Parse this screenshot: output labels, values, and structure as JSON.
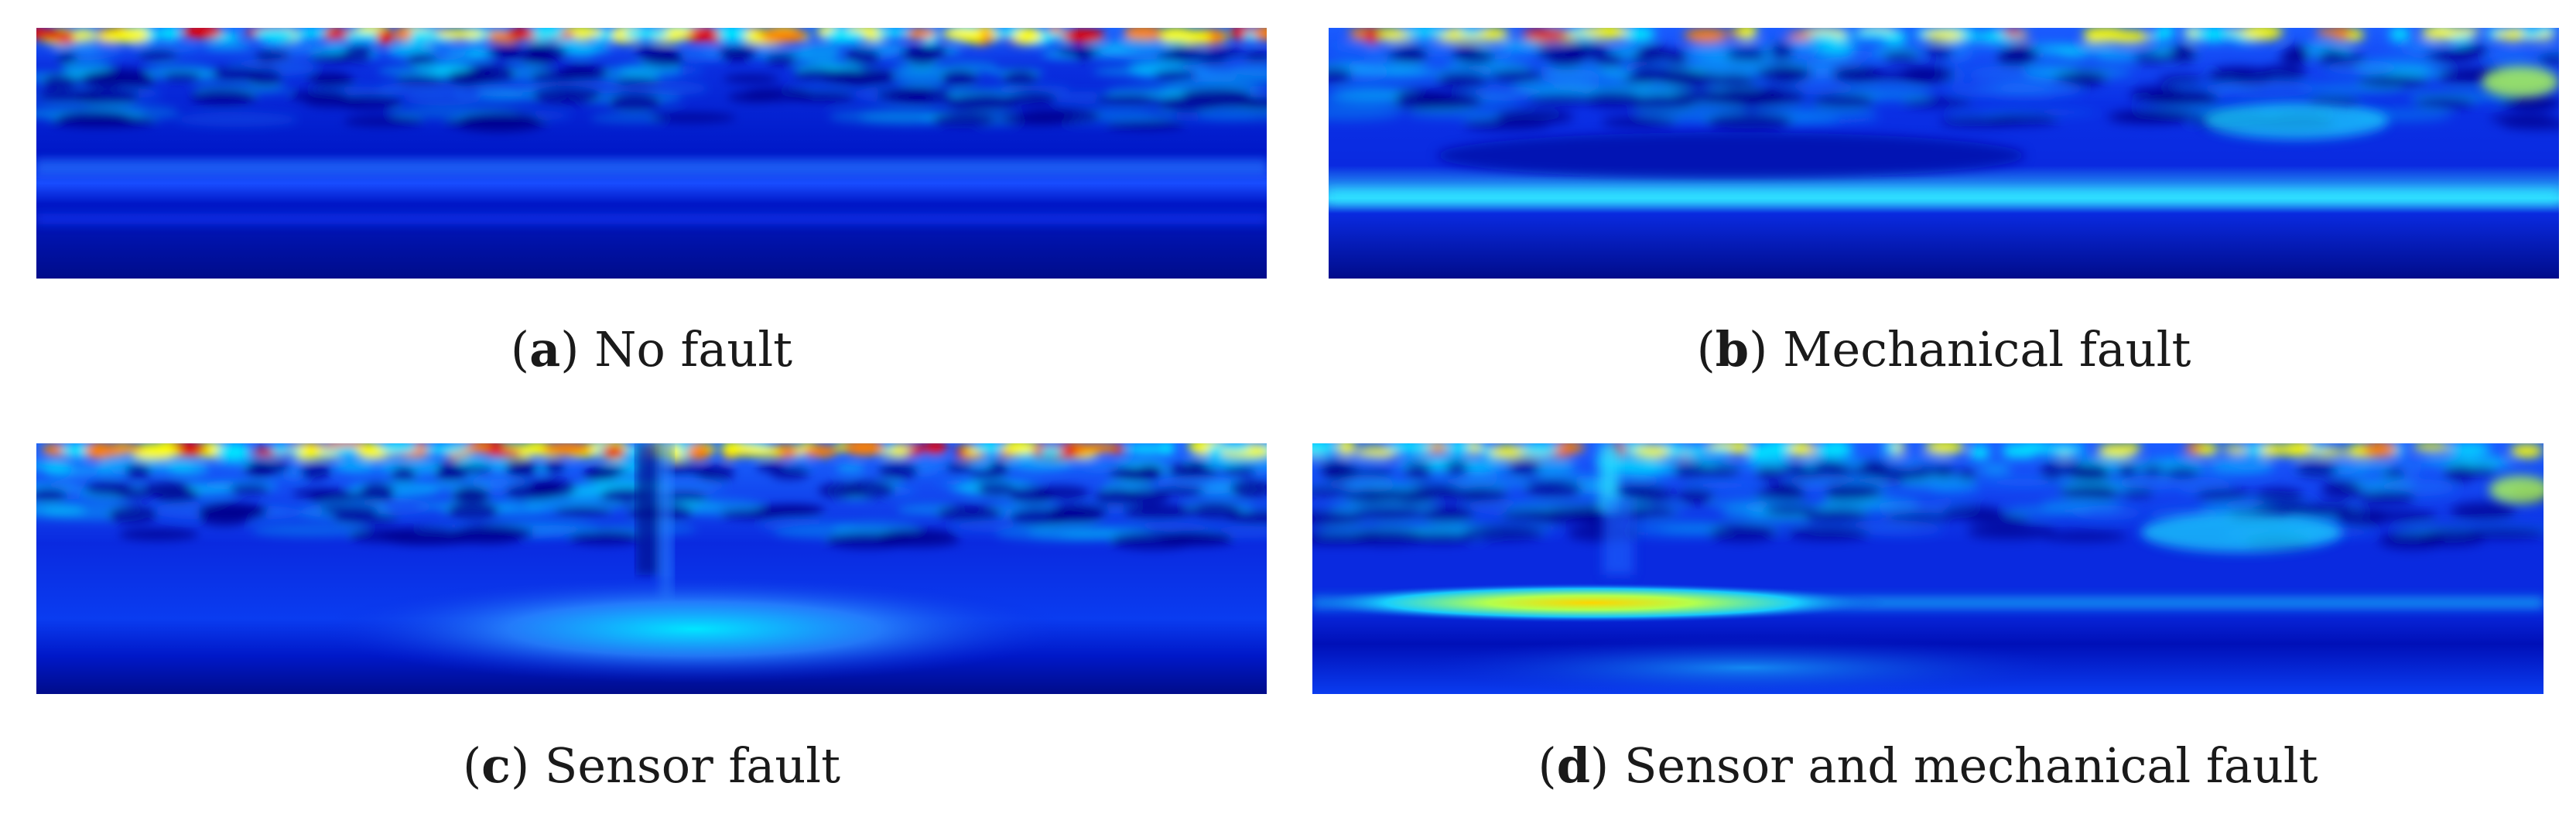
{
  "figure": {
    "panels": [
      {
        "letter": "a",
        "label": "No fault"
      },
      {
        "letter": "b",
        "label": "Mechanical fault"
      },
      {
        "letter": "c",
        "label": "Sensor fault"
      },
      {
        "letter": "d",
        "label": "Sensor and mechanical fault"
      }
    ]
  },
  "chart_data": [
    {
      "type": "heatmap",
      "title": "No fault",
      "colormap": "jet",
      "xlabel": "",
      "ylabel": "",
      "features": {
        "high_freq_band": "strong",
        "low_freq_band": "weak",
        "localized_event": "none"
      }
    },
    {
      "type": "heatmap",
      "title": "Mechanical fault",
      "colormap": "jet",
      "xlabel": "",
      "ylabel": "",
      "features": {
        "high_freq_band": "moderate",
        "low_freq_band": "cyan band",
        "localized_event": "none"
      }
    },
    {
      "type": "heatmap",
      "title": "Sensor fault",
      "colormap": "jet",
      "xlabel": "",
      "ylabel": "",
      "features": {
        "high_freq_band": "strong",
        "low_freq_band": "cyan blob center",
        "localized_event": "vertical streak center"
      }
    },
    {
      "type": "heatmap",
      "title": "Sensor and mechanical fault",
      "colormap": "jet",
      "xlabel": "",
      "ylabel": "",
      "features": {
        "high_freq_band": "moderate",
        "low_freq_band": "yellow band left-center",
        "localized_event": "vertical streak center"
      }
    }
  ],
  "colors": {
    "deep_blue": "#00008f",
    "blue": "#0000ff",
    "mid_blue": "#1a4dff",
    "cyan": "#00e6ff",
    "yellow": "#ffff00",
    "orange": "#ff8000",
    "red": "#e60000"
  }
}
